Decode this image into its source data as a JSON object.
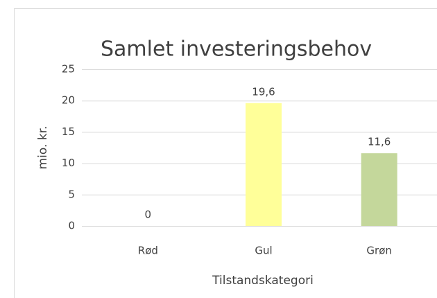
{
  "chart_data": {
    "type": "bar",
    "title": "Samlet investeringsbehov",
    "categories": [
      "Rød",
      "Gul",
      "Grøn"
    ],
    "values": [
      0,
      19.6,
      11.6
    ],
    "value_labels": [
      "0",
      "19,6",
      "11,6"
    ],
    "colors": [
      "#ff5050",
      "#ffff99",
      "#c4d79b"
    ],
    "ylim": [
      0,
      25
    ],
    "yticks": [
      0,
      5,
      10,
      15,
      20,
      25
    ],
    "grid": true,
    "y_label": "mio. kr.",
    "x_label": "Tilstandskategori"
  }
}
